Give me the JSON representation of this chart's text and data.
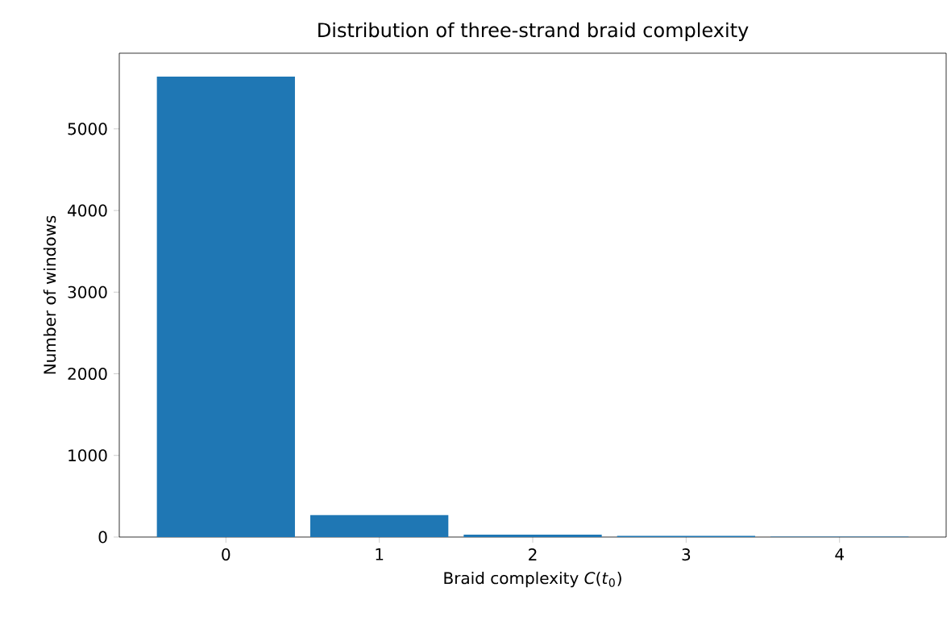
{
  "chart_data": {
    "type": "bar",
    "title": "Distribution of three-strand braid complexity",
    "xlabel": "Braid complexity *C*(*t*$_{0}$)",
    "ylabel": "Number of windows",
    "categories": [
      "0",
      "1",
      "2",
      "3",
      "4"
    ],
    "values": [
      5640,
      270,
      30,
      15,
      5
    ],
    "color": "#1f77b4",
    "ylim": [
      0,
      5927
    ],
    "yticks": [
      0,
      1000,
      2000,
      3000,
      4000,
      5000
    ]
  }
}
